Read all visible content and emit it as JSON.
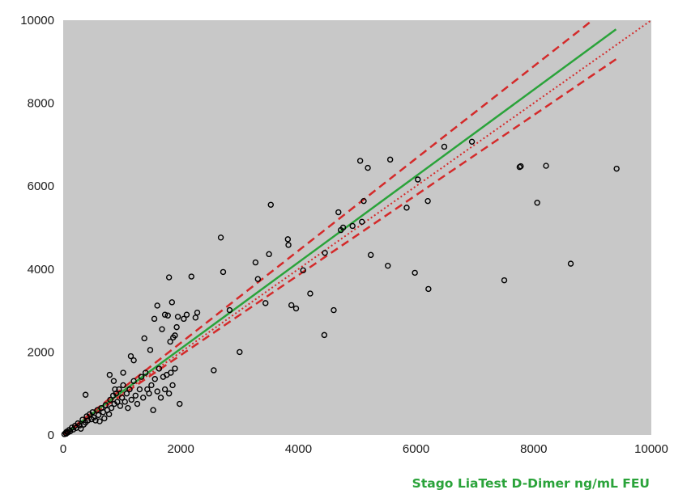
{
  "colors": {
    "plot_background": "#c8c8c8",
    "identity_line": "#d42a2a",
    "confidence_band": "#d42a2a",
    "regression_line": "#2aa33a",
    "points": "#000000",
    "axis_title": "#2aa33a"
  },
  "chart_data": {
    "type": "scatter",
    "title": "",
    "xlabel": "Stago LiaTest D-Dimer ng/mL FEU",
    "ylabel": "",
    "xlim": [
      0,
      10000
    ],
    "ylim": [
      0,
      10000
    ],
    "x_ticks": [
      0,
      2000,
      4000,
      6000,
      8000,
      10000
    ],
    "y_ticks": [
      0,
      2000,
      4000,
      6000,
      8000,
      10000
    ],
    "x_tick_labels": [
      "0",
      "2000",
      "4000",
      "6000",
      "8000",
      "10000"
    ],
    "y_tick_labels": [
      "0",
      "2000",
      "4000",
      "6000",
      "8000",
      "10000"
    ],
    "grid": false,
    "legend": "none",
    "lines": [
      {
        "style": "dotted",
        "color": "#d42a2a",
        "x": [
          0,
          10000
        ],
        "y": [
          0,
          10000
        ]
      },
      {
        "style": "solid",
        "color": "#2aa33a",
        "x": [
          0,
          9400
        ],
        "y": [
          0,
          9780
        ]
      },
      {
        "style": "dashed",
        "color": "#d42a2a",
        "x": [
          0,
          9000
        ],
        "y": [
          0,
          10000
        ]
      },
      {
        "style": "dashed",
        "color": "#d42a2a",
        "x": [
          0,
          9400
        ],
        "y": [
          0,
          9060
        ]
      }
    ],
    "points": [
      [
        20,
        20
      ],
      [
        40,
        50
      ],
      [
        50,
        30
      ],
      [
        60,
        80
      ],
      [
        80,
        60
      ],
      [
        100,
        120
      ],
      [
        120,
        90
      ],
      [
        150,
        180
      ],
      [
        170,
        130
      ],
      [
        200,
        220
      ],
      [
        220,
        170
      ],
      [
        250,
        280
      ],
      [
        280,
        230
      ],
      [
        300,
        150
      ],
      [
        330,
        370
      ],
      [
        350,
        250
      ],
      [
        380,
        300
      ],
      [
        400,
        450
      ],
      [
        420,
        350
      ],
      [
        450,
        500
      ],
      [
        480,
        380
      ],
      [
        500,
        550
      ],
      [
        520,
        420
      ],
      [
        550,
        350
      ],
      [
        580,
        600
      ],
      [
        600,
        480
      ],
      [
        620,
        330
      ],
      [
        650,
        650
      ],
      [
        680,
        550
      ],
      [
        700,
        400
      ],
      [
        720,
        720
      ],
      [
        750,
        600
      ],
      [
        780,
        500
      ],
      [
        800,
        850
      ],
      [
        820,
        650
      ],
      [
        850,
        950
      ],
      [
        870,
        750
      ],
      [
        900,
        1000
      ],
      [
        920,
        800
      ],
      [
        950,
        1100
      ],
      [
        970,
        700
      ],
      [
        1000,
        900
      ],
      [
        1020,
        1200
      ],
      [
        1050,
        800
      ],
      [
        1080,
        1000
      ],
      [
        1100,
        650
      ],
      [
        1130,
        1100
      ],
      [
        1160,
        850
      ],
      [
        1200,
        1300
      ],
      [
        1230,
        950
      ],
      [
        1260,
        750
      ],
      [
        1300,
        1100
      ],
      [
        1330,
        1400
      ],
      [
        1360,
        900
      ],
      [
        1400,
        1500
      ],
      [
        1430,
        1100
      ],
      [
        1460,
        1000
      ],
      [
        1500,
        1200
      ],
      [
        1530,
        600
      ],
      [
        1560,
        1350
      ],
      [
        1600,
        1050
      ],
      [
        1630,
        1600
      ],
      [
        1660,
        900
      ],
      [
        1700,
        1400
      ],
      [
        1730,
        1100
      ],
      [
        1760,
        1450
      ],
      [
        1800,
        1000
      ],
      [
        1830,
        1500
      ],
      [
        1860,
        1200
      ],
      [
        1900,
        1600
      ],
      [
        380,
        970
      ],
      [
        790,
        1450
      ],
      [
        860,
        1300
      ],
      [
        880,
        1100
      ],
      [
        1020,
        1500
      ],
      [
        1150,
        1900
      ],
      [
        1200,
        1800
      ],
      [
        1380,
        2330
      ],
      [
        1480,
        2050
      ],
      [
        1550,
        2800
      ],
      [
        1600,
        3120
      ],
      [
        1680,
        2550
      ],
      [
        1730,
        2900
      ],
      [
        1780,
        2880
      ],
      [
        1800,
        3800
      ],
      [
        1820,
        2250
      ],
      [
        1850,
        3200
      ],
      [
        1870,
        2350
      ],
      [
        1900,
        2400
      ],
      [
        1930,
        2600
      ],
      [
        1950,
        2850
      ],
      [
        1980,
        750
      ],
      [
        2050,
        2800
      ],
      [
        2100,
        2900
      ],
      [
        2180,
        3820
      ],
      [
        2250,
        2830
      ],
      [
        2280,
        2950
      ],
      [
        2560,
        1560
      ],
      [
        2680,
        4760
      ],
      [
        2720,
        3930
      ],
      [
        2830,
        3010
      ],
      [
        3000,
        2000
      ],
      [
        3270,
        4160
      ],
      [
        3310,
        3760
      ],
      [
        3440,
        3180
      ],
      [
        3500,
        4360
      ],
      [
        3530,
        5550
      ],
      [
        3820,
        4720
      ],
      [
        3830,
        4580
      ],
      [
        3880,
        3130
      ],
      [
        3960,
        3050
      ],
      [
        4080,
        3970
      ],
      [
        4200,
        3410
      ],
      [
        4440,
        2410
      ],
      [
        4450,
        4390
      ],
      [
        4600,
        3010
      ],
      [
        4680,
        5370
      ],
      [
        4720,
        4940
      ],
      [
        4760,
        5000
      ],
      [
        4920,
        5040
      ],
      [
        5050,
        6610
      ],
      [
        5080,
        5140
      ],
      [
        5110,
        5640
      ],
      [
        5180,
        6440
      ],
      [
        5230,
        4340
      ],
      [
        5520,
        4080
      ],
      [
        5560,
        6640
      ],
      [
        5840,
        5480
      ],
      [
        5980,
        3910
      ],
      [
        6030,
        6160
      ],
      [
        6200,
        5640
      ],
      [
        6210,
        3520
      ],
      [
        6480,
        6950
      ],
      [
        6950,
        7070
      ],
      [
        7500,
        3730
      ],
      [
        7760,
        6460
      ],
      [
        7780,
        6480
      ],
      [
        8060,
        5600
      ],
      [
        8210,
        6490
      ],
      [
        8630,
        4130
      ],
      [
        9410,
        6420
      ]
    ]
  }
}
